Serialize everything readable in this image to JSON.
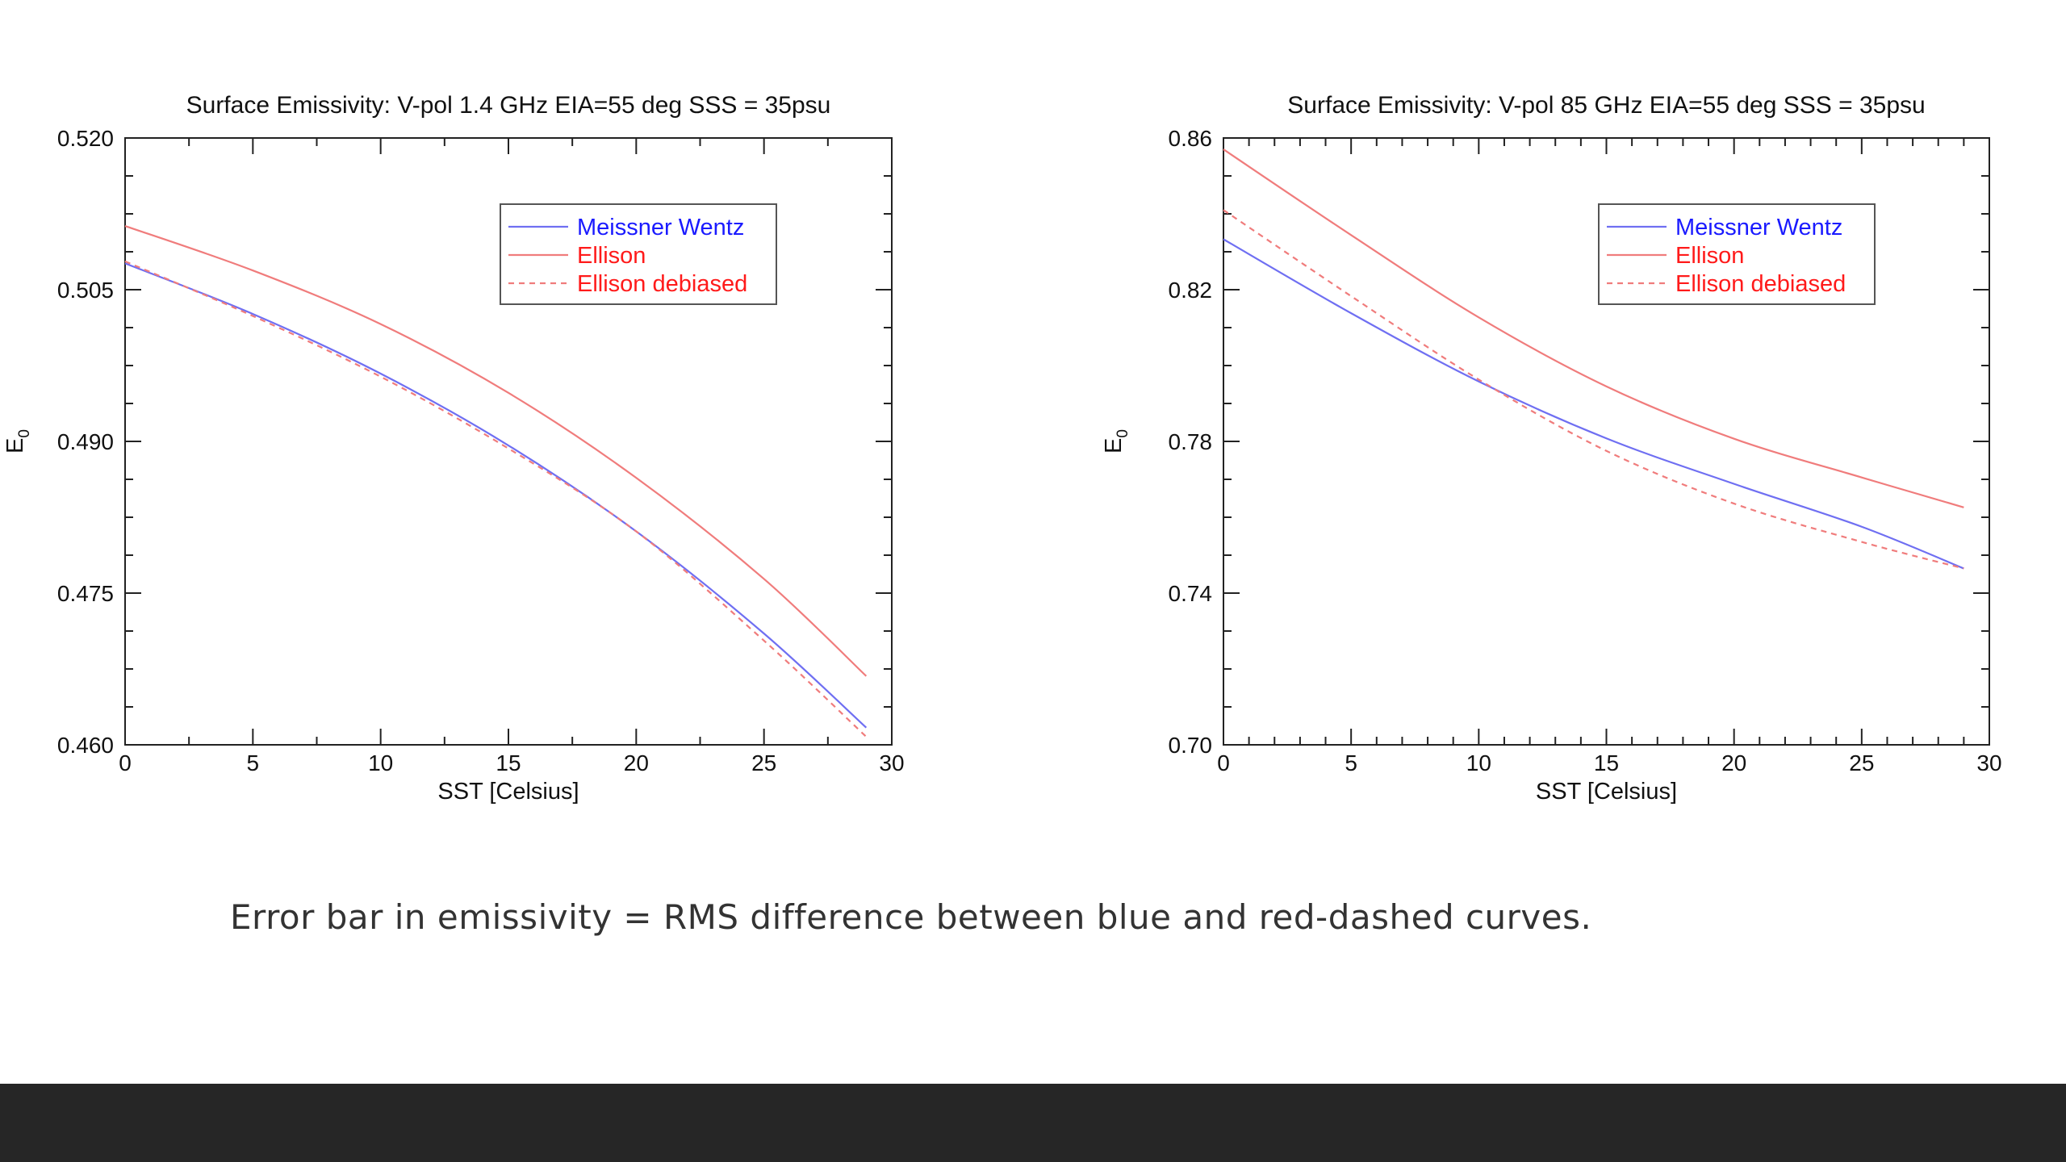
{
  "caption": "Error bar in emissivity = RMS difference between blue and red-dashed curves.",
  "colors": {
    "blue": "#6f6ff2",
    "red": "#f07c7c",
    "legend_blue": "#1a1aff",
    "legend_red": "#ff1a1a",
    "footer": "#262626"
  },
  "chart_data": [
    {
      "type": "line",
      "title": "Surface Emissivity:  V-pol 1.4 GHz EIA=55 deg  SSS = 35psu",
      "xlabel": "SST [Celsius]",
      "ylabel": "E",
      "ylabel_sub": "0",
      "xlim": [
        0,
        30
      ],
      "ylim": [
        0.46,
        0.52
      ],
      "xticks": [
        0,
        5,
        10,
        15,
        20,
        25,
        30
      ],
      "xtick_labels": [
        "0",
        "5",
        "10",
        "15",
        "20",
        "25",
        "30"
      ],
      "yticks": [
        0.46,
        0.475,
        0.49,
        0.505,
        0.52
      ],
      "ytick_labels": [
        "0.460",
        "0.475",
        "0.490",
        "0.505",
        "0.520"
      ],
      "legend_position": "top-right",
      "x": [
        0,
        5,
        10,
        15,
        20,
        25,
        29
      ],
      "series": [
        {
          "name": "Meissner Wentz",
          "style": "solid",
          "color": "#6f6ff2",
          "legend_color": "#1a1aff",
          "values": [
            0.5076,
            0.5026,
            0.4967,
            0.4896,
            0.4811,
            0.471,
            0.4617
          ]
        },
        {
          "name": "Ellison",
          "style": "solid",
          "color": "#f07c7c",
          "legend_color": "#ff1a1a",
          "values": [
            0.5113,
            0.5069,
            0.5016,
            0.4948,
            0.4864,
            0.4764,
            0.4668
          ]
        },
        {
          "name": "Ellison debiased",
          "style": "dashed",
          "color": "#f07c7c",
          "legend_color": "#ff1a1a",
          "values": [
            0.5078,
            0.5024,
            0.4964,
            0.4893,
            0.4811,
            0.4703,
            0.4608
          ]
        }
      ]
    },
    {
      "type": "line",
      "title": "Surface Emissivity:  V-pol 85 GHz EIA=55 deg  SSS = 35psu",
      "xlabel": "SST [Celsius]",
      "ylabel": "E",
      "ylabel_sub": "0",
      "xlim": [
        0,
        30
      ],
      "ylim": [
        0.7,
        0.86
      ],
      "xticks": [
        0,
        5,
        10,
        15,
        20,
        25,
        30
      ],
      "xtick_labels": [
        "0",
        "5",
        "10",
        "15",
        "20",
        "25",
        "30"
      ],
      "yticks": [
        0.7,
        0.74,
        0.78,
        0.82,
        0.86
      ],
      "ytick_labels": [
        "0.70",
        "0.74",
        "0.78",
        "0.82",
        "0.86"
      ],
      "legend_position": "top-right",
      "x": [
        0,
        5,
        10,
        15,
        20,
        25,
        29
      ],
      "series": [
        {
          "name": "Meissner Wentz",
          "style": "solid",
          "color": "#6f6ff2",
          "legend_color": "#1a1aff",
          "values": [
            0.8333,
            0.8138,
            0.7958,
            0.7808,
            0.7688,
            0.7575,
            0.7465
          ]
        },
        {
          "name": "Ellison",
          "style": "solid",
          "color": "#f07c7c",
          "legend_color": "#ff1a1a",
          "values": [
            0.857,
            0.8344,
            0.8127,
            0.7945,
            0.7807,
            0.7705,
            0.7626
          ]
        },
        {
          "name": "Ellison debiased",
          "style": "dashed",
          "color": "#f07c7c",
          "legend_color": "#ff1a1a",
          "values": [
            0.841,
            0.8183,
            0.7963,
            0.7775,
            0.7636,
            0.7535,
            0.7465
          ]
        }
      ]
    }
  ]
}
